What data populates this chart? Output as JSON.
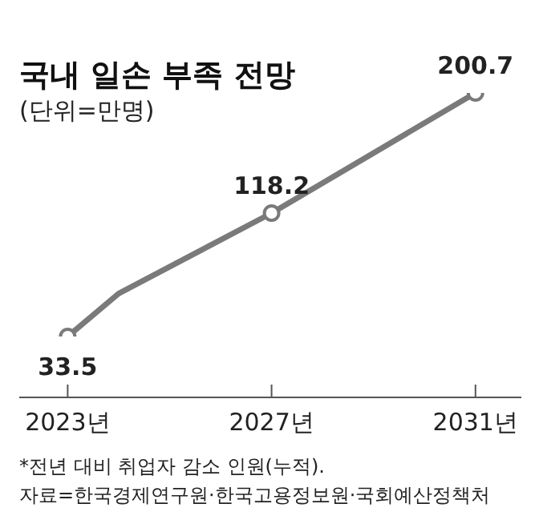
{
  "chart_data": {
    "type": "line",
    "title": "국내 일손 부족 전망",
    "subtitle": "(단위=만명)",
    "x": [
      2023,
      2024,
      2027,
      2031
    ],
    "series": [
      {
        "color": "#7a7a7a",
        "values": [
          33.5,
          63,
          118.2,
          200.7
        ],
        "value_labels": [
          "33.5",
          null,
          "118.2",
          "200.7"
        ]
      }
    ],
    "xlim": [
      2022.05,
      2031.9
    ],
    "xticks": [
      {
        "value": 2023,
        "label": "2023년"
      },
      {
        "value": 2027,
        "label": "2027년"
      },
      {
        "value": 2031,
        "label": "2031년"
      }
    ],
    "tick_labels": "x",
    "marker": "circle",
    "line_style": "solid",
    "annotations": [
      "*전년 대비 취업자 감소 인원(누적).",
      "자료=한국경제연구원·한국고용정보원·국회예산정책처"
    ]
  }
}
